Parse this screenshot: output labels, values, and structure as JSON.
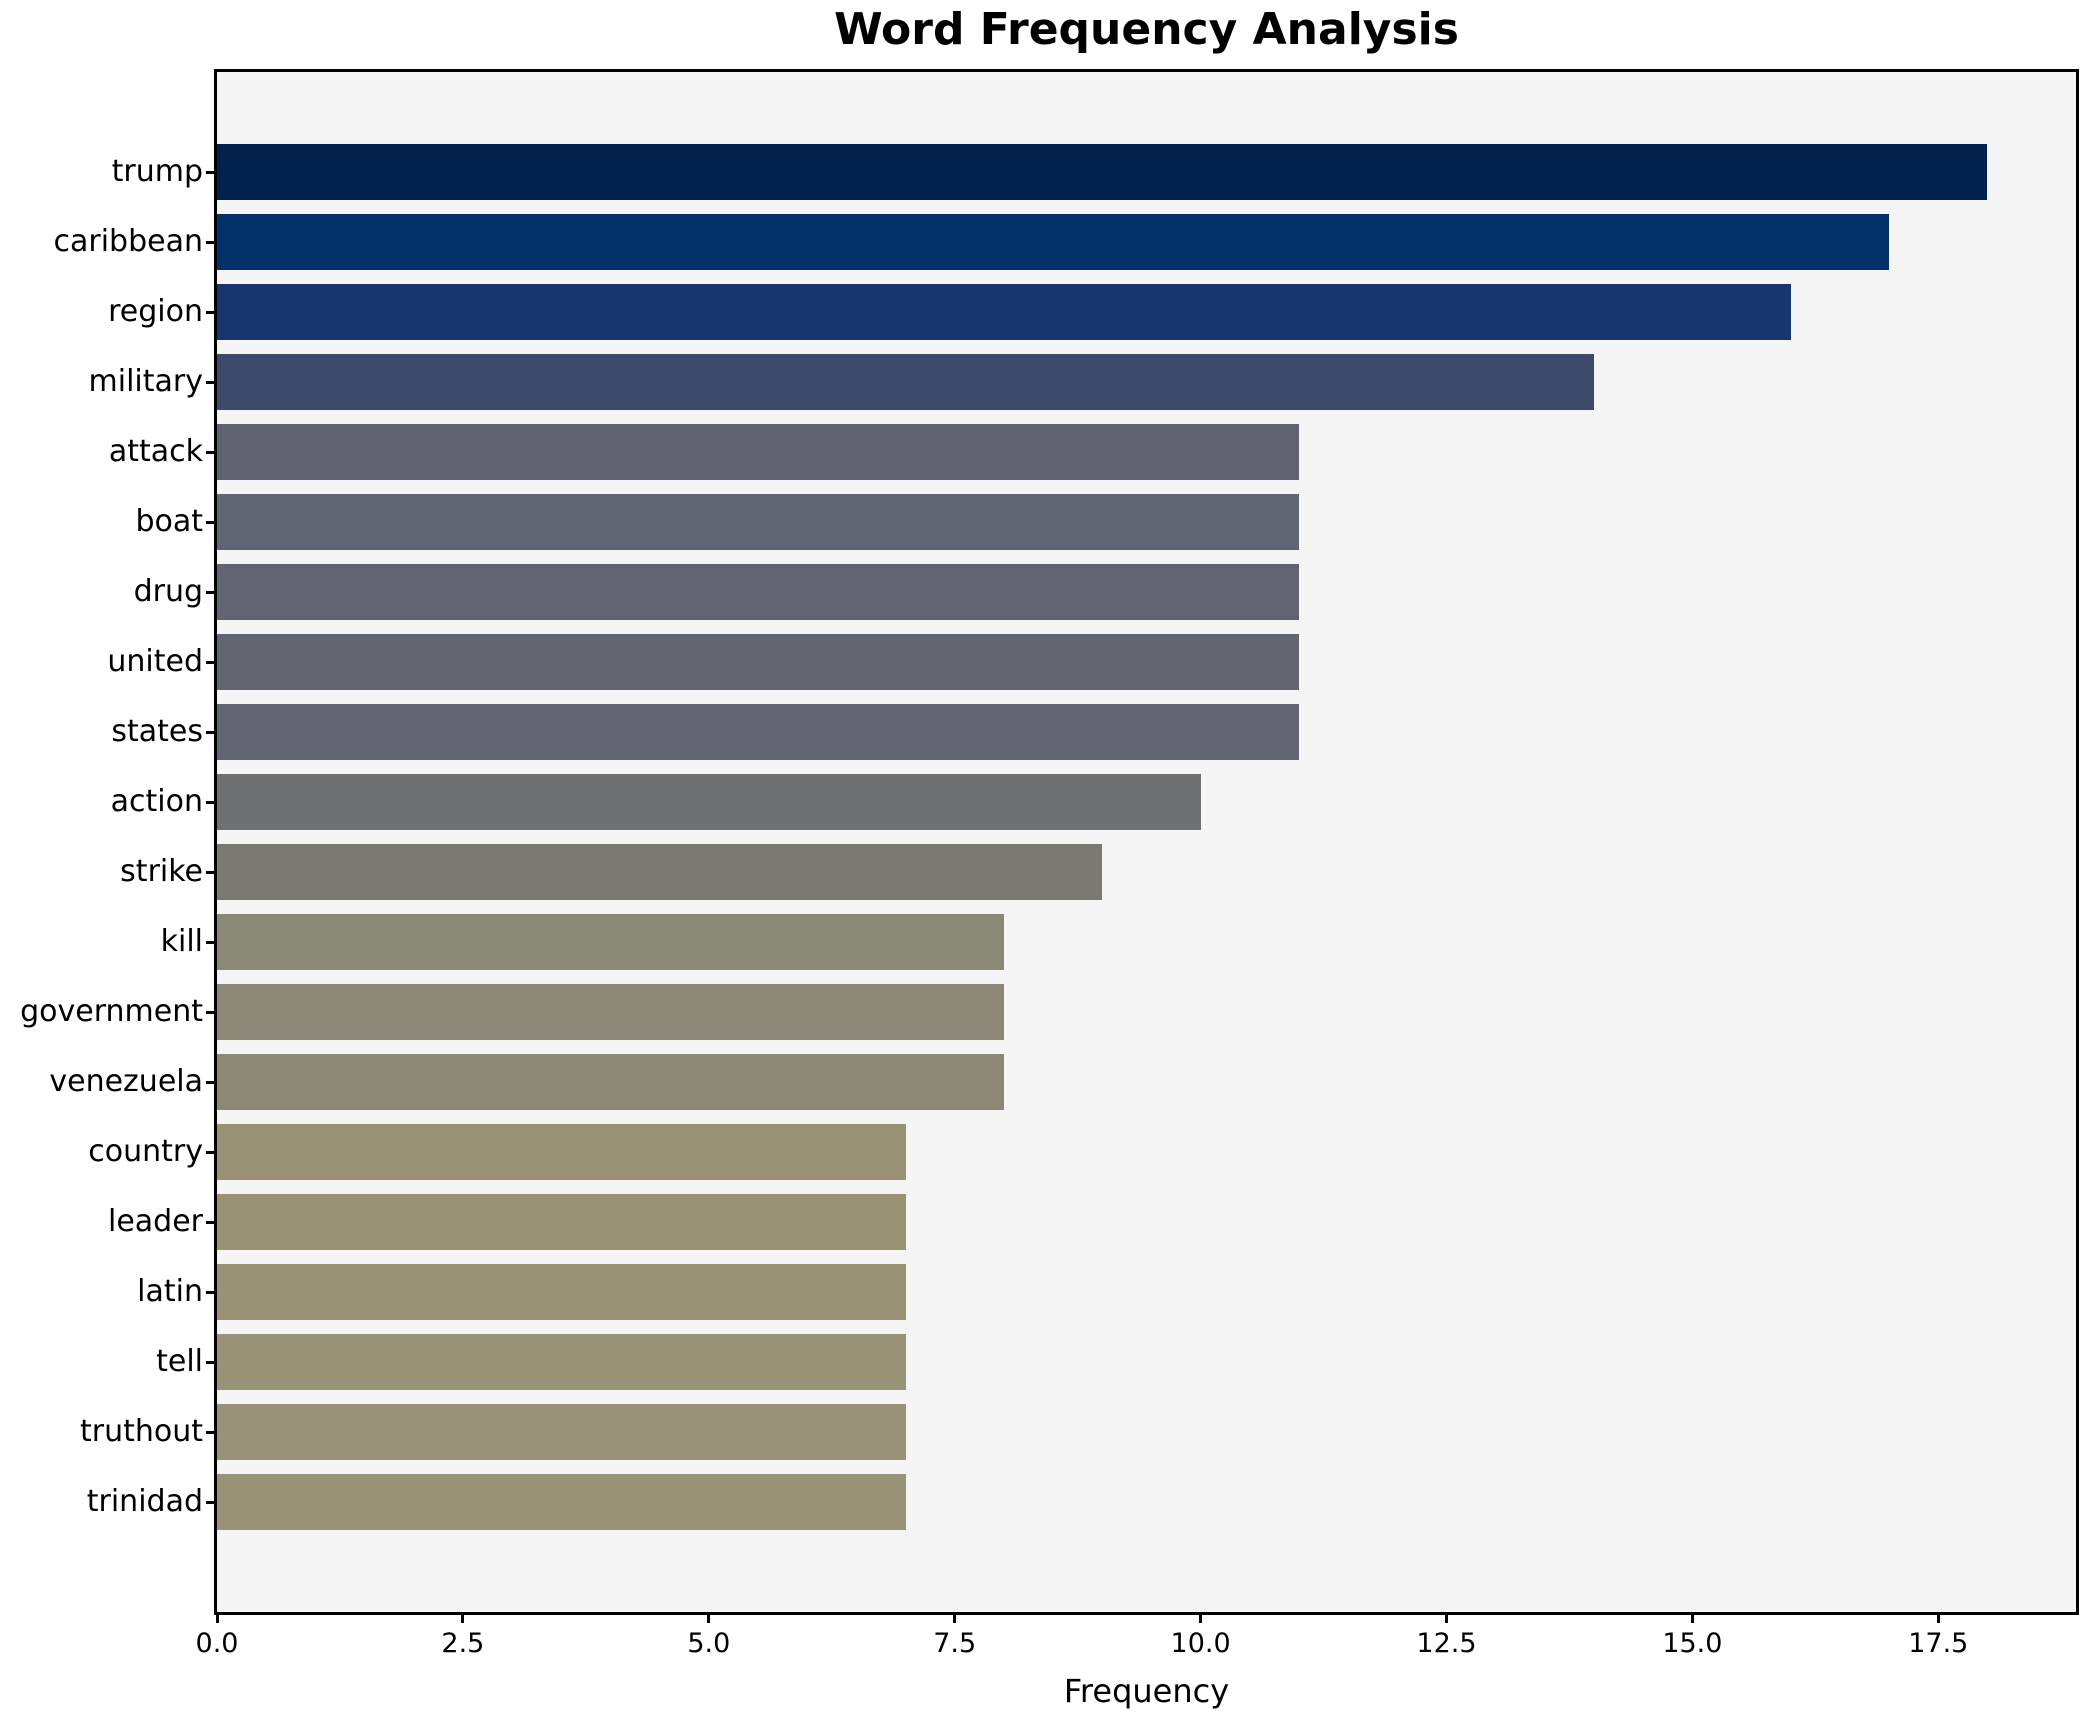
{
  "title": "Word Frequency Analysis",
  "chart_data": {
    "type": "bar",
    "orientation": "horizontal",
    "title": "Word Frequency Analysis",
    "xlabel": "Frequency",
    "ylabel": "",
    "categories": [
      "trump",
      "caribbean",
      "region",
      "military",
      "attack",
      "boat",
      "drug",
      "united",
      "states",
      "action",
      "strike",
      "kill",
      "government",
      "venezuela",
      "country",
      "leader",
      "latin",
      "tell",
      "truthout",
      "trinidad"
    ],
    "values": [
      18,
      17,
      16,
      14,
      11,
      11,
      11,
      11,
      11,
      10,
      9,
      8,
      8,
      8,
      7,
      7,
      7,
      7,
      7,
      7
    ],
    "bar_colors": [
      "#02224e",
      "#04306a",
      "#17366e",
      "#3d4a6c",
      "#60626f",
      "#606370",
      "#616470",
      "#626470",
      "#636471",
      "#6e7071",
      "#7b7973",
      "#8a8877",
      "#8b8877",
      "#8b8876",
      "#989173",
      "#989172",
      "#979274",
      "#989377",
      "#989378",
      "#989377"
    ],
    "x_ticks": [
      0.0,
      2.5,
      5.0,
      7.5,
      10.0,
      12.5,
      15.0,
      17.5
    ],
    "x_tick_labels": [
      "0.0",
      "2.5",
      "5.0",
      "7.5",
      "10.0",
      "12.5",
      "15.0",
      "17.5"
    ],
    "xlim": [
      0,
      18.9
    ],
    "grid": false,
    "legend": false,
    "plot_background": "#f5f5f6",
    "figure_background": "#ffffff",
    "spine_color": "#000000"
  }
}
